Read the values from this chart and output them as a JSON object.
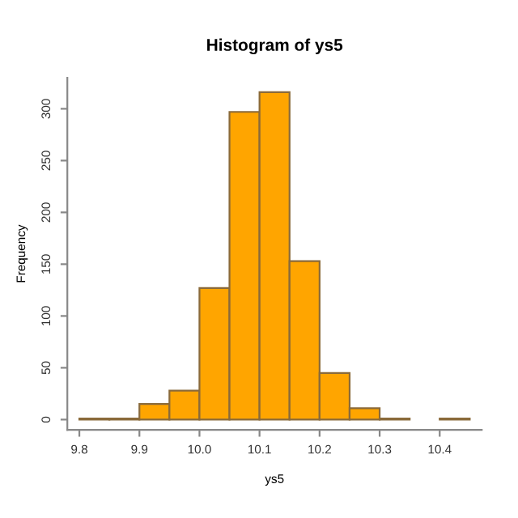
{
  "chart_data": {
    "type": "histogram",
    "title": "Histogram of ys5",
    "xlabel": "ys5",
    "ylabel": "Frequency",
    "bins": [
      9.8,
      9.85,
      9.9,
      9.95,
      10.0,
      10.05,
      10.1,
      10.15,
      10.2,
      10.25,
      10.3,
      10.35,
      10.4,
      10.45
    ],
    "values": [
      1,
      1,
      15,
      28,
      127,
      297,
      316,
      153,
      45,
      11,
      1,
      0,
      1
    ],
    "color": "#ffa500",
    "xlim": [
      9.78,
      10.47
    ],
    "ylim": [
      -10,
      330
    ],
    "xticks": [
      9.8,
      9.9,
      {
        "value": 10.0,
        "label": "10.0"
      },
      10.1,
      10.2,
      10.3,
      10.4
    ],
    "yticks": [
      0,
      50,
      100,
      150,
      200,
      250,
      300
    ],
    "grid": false
  }
}
